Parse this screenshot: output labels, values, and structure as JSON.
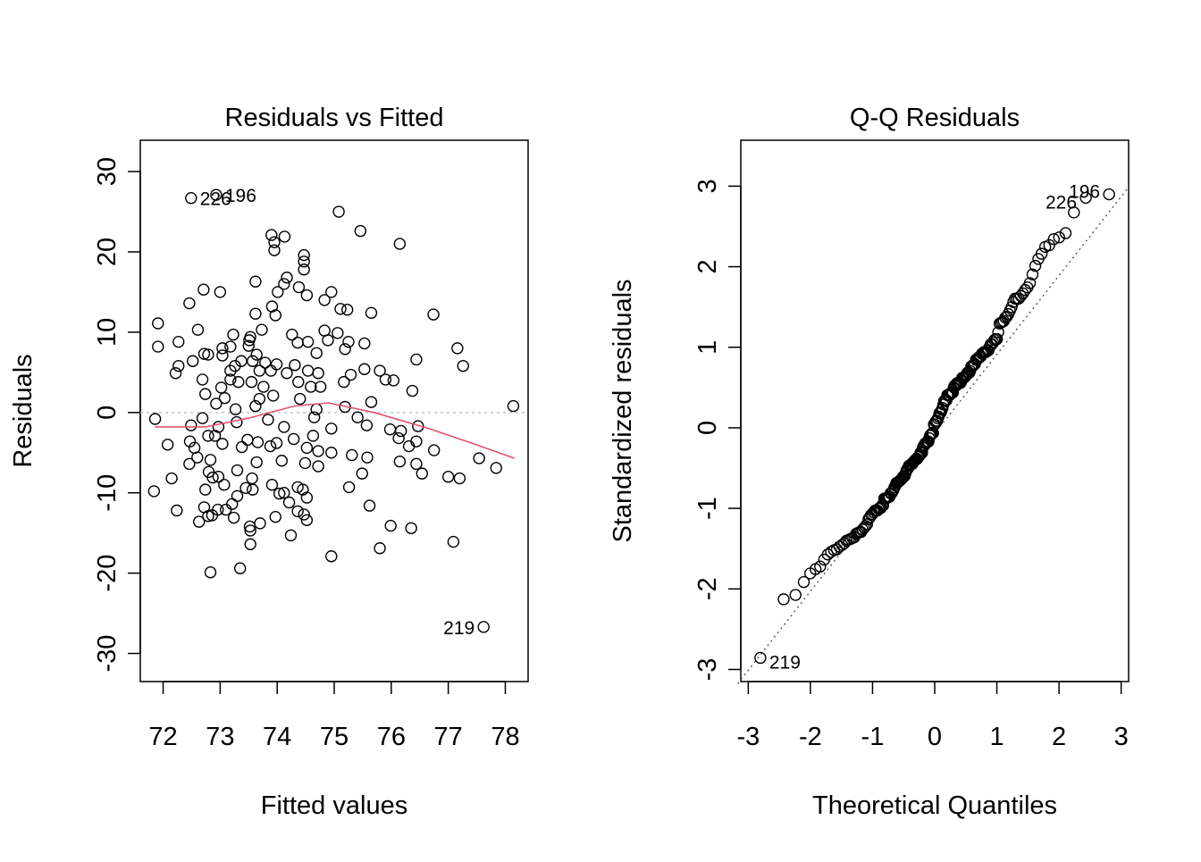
{
  "chart_data": [
    {
      "type": "scatter",
      "title": "Residuals vs Fitted",
      "xlabel": "Fitted values",
      "ylabel": "Residuals",
      "xlim": [
        71.6,
        78.4
      ],
      "ylim": [
        -33.5,
        33.9
      ],
      "xticks": [
        "72",
        "73",
        "74",
        "75",
        "76",
        "77",
        "78"
      ],
      "yticks": [
        "-30",
        "-20",
        "-10",
        "0",
        "10",
        "20",
        "30"
      ],
      "reference_line": {
        "y": 0,
        "color": "#BEBEBE",
        "style": "dotted"
      },
      "smoother_color": "#DF536B",
      "smoother": [
        [
          71.86,
          -1.8
        ],
        [
          72.74,
          -1.8
        ],
        [
          73.5,
          -0.7
        ],
        [
          74.3,
          0.8
        ],
        [
          74.9,
          1.2
        ],
        [
          75.7,
          0.0
        ],
        [
          76.66,
          -2.0
        ],
        [
          77.45,
          -3.9
        ],
        [
          78.16,
          -5.7
        ]
      ],
      "labels": [
        {
          "text": "226",
          "point": [
            72.49,
            26.7
          ],
          "side": "right"
        },
        {
          "text": "196",
          "point": [
            72.93,
            27.1
          ],
          "side": "right"
        },
        {
          "text": "219",
          "point": [
            77.62,
            -26.7
          ],
          "side": "left"
        }
      ],
      "points": [
        [
          72.49,
          26.7
        ],
        [
          72.93,
          27.1
        ],
        [
          75.08,
          25
        ],
        [
          75.46,
          22.6
        ],
        [
          76.15,
          21
        ],
        [
          73.9,
          22.1
        ],
        [
          74.13,
          21.9
        ],
        [
          73.95,
          21.2
        ],
        [
          73.95,
          20.2
        ],
        [
          74.47,
          19.6
        ],
        [
          74.47,
          18.8
        ],
        [
          74.47,
          17.8
        ],
        [
          73.62,
          16.3
        ],
        [
          74.17,
          16.8
        ],
        [
          74.12,
          16
        ],
        [
          74.38,
          15.6
        ],
        [
          74.01,
          15
        ],
        [
          72.71,
          15.3
        ],
        [
          73,
          15
        ],
        [
          74.52,
          14.6
        ],
        [
          74.95,
          15
        ],
        [
          74.83,
          14
        ],
        [
          72.46,
          13.6
        ],
        [
          73.91,
          13.2
        ],
        [
          75.11,
          12.9
        ],
        [
          75.23,
          12.8
        ],
        [
          73.97,
          12.1
        ],
        [
          73.62,
          12.3
        ],
        [
          75.65,
          12.4
        ],
        [
          76.74,
          12.2
        ],
        [
          71.91,
          11.1
        ],
        [
          72.61,
          10.3
        ],
        [
          73.73,
          10.3
        ],
        [
          74.83,
          10.2
        ],
        [
          75.06,
          9.9
        ],
        [
          73.23,
          9.7
        ],
        [
          73.53,
          9.4
        ],
        [
          74.26,
          9.7
        ],
        [
          72.27,
          8.8
        ],
        [
          73.51,
          9
        ],
        [
          74.54,
          8.8
        ],
        [
          74.89,
          9
        ],
        [
          75.25,
          8.8
        ],
        [
          75.53,
          8.6
        ],
        [
          73.5,
          8.3
        ],
        [
          74.36,
          8.7
        ],
        [
          73.04,
          8
        ],
        [
          73.18,
          8.2
        ],
        [
          77.16,
          8
        ],
        [
          71.91,
          8.2
        ],
        [
          72.72,
          7.3
        ],
        [
          72.79,
          7.2
        ],
        [
          73.04,
          7.1
        ],
        [
          73.64,
          7.2
        ],
        [
          74.69,
          7.4
        ],
        [
          75.19,
          7.9
        ],
        [
          72.52,
          6.4
        ],
        [
          73.37,
          6.4
        ],
        [
          73.57,
          6.4
        ],
        [
          73.79,
          6.2
        ],
        [
          73.99,
          6
        ],
        [
          74.31,
          5.9
        ],
        [
          76.44,
          6.6
        ],
        [
          77.26,
          5.8
        ],
        [
          72.27,
          5.8
        ],
        [
          72.22,
          4.9
        ],
        [
          73.18,
          5.2
        ],
        [
          73.26,
          5.8
        ],
        [
          73.69,
          5.2
        ],
        [
          73.89,
          5.2
        ],
        [
          74.17,
          4.9
        ],
        [
          74.54,
          5.2
        ],
        [
          74.72,
          4.9
        ],
        [
          75.29,
          4.7
        ],
        [
          75.53,
          5.4
        ],
        [
          75.8,
          5.2
        ],
        [
          75.9,
          4.1
        ],
        [
          76.04,
          4
        ],
        [
          73.18,
          4.1
        ],
        [
          73.32,
          3.8
        ],
        [
          73.55,
          3.8
        ],
        [
          73.76,
          3.2
        ],
        [
          72.69,
          4.1
        ],
        [
          74.37,
          3.8
        ],
        [
          74.59,
          3.2
        ],
        [
          74.76,
          3.2
        ],
        [
          75.17,
          3.8
        ],
        [
          76.37,
          2.7
        ],
        [
          73.02,
          3.1
        ],
        [
          72.74,
          2.3
        ],
        [
          73.08,
          1.8
        ],
        [
          72.93,
          1.1
        ],
        [
          73.69,
          1.7
        ],
        [
          73.93,
          2.1
        ],
        [
          74.4,
          1.7
        ],
        [
          73.27,
          0.4
        ],
        [
          73.62,
          0.8
        ],
        [
          74.69,
          0.4
        ],
        [
          75.19,
          0.7
        ],
        [
          75.65,
          1.3
        ],
        [
          78.14,
          0.8
        ],
        [
          71.86,
          -0.8
        ],
        [
          72.69,
          -0.7
        ],
        [
          72.49,
          -1.6
        ],
        [
          73.29,
          -1.2
        ],
        [
          73.84,
          -0.9
        ],
        [
          74.12,
          -1.8
        ],
        [
          74.65,
          -0.6
        ],
        [
          75.41,
          -0.6
        ],
        [
          75.57,
          -1.6
        ],
        [
          75.98,
          -2.1
        ],
        [
          76.17,
          -2.3
        ],
        [
          76.47,
          -1.7
        ],
        [
          72.97,
          -1.8
        ],
        [
          72.47,
          -3.6
        ],
        [
          72.08,
          -4
        ],
        [
          72.79,
          -2.9
        ],
        [
          72.91,
          -2.9
        ],
        [
          73.48,
          -3.4
        ],
        [
          73.66,
          -3.7
        ],
        [
          73.99,
          -3.8
        ],
        [
          74.29,
          -3.3
        ],
        [
          74.63,
          -2.9
        ],
        [
          74.95,
          -2
        ],
        [
          76.13,
          -3.2
        ],
        [
          76.44,
          -3.6
        ],
        [
          72.6,
          -5.6
        ],
        [
          72.55,
          -4.4
        ],
        [
          73.04,
          -3.9
        ],
        [
          73.38,
          -4.3
        ],
        [
          73.88,
          -4.2
        ],
        [
          74.52,
          -4.4
        ],
        [
          74.72,
          -4.8
        ],
        [
          74.95,
          -5
        ],
        [
          75.31,
          -5.3
        ],
        [
          75.58,
          -5.6
        ],
        [
          76.75,
          -4.7
        ],
        [
          76.31,
          -4.2
        ],
        [
          72.46,
          -6.4
        ],
        [
          72.83,
          -5.9
        ],
        [
          73.64,
          -6.2
        ],
        [
          74.08,
          -6
        ],
        [
          74.49,
          -6.3
        ],
        [
          74.72,
          -6.7
        ],
        [
          76.15,
          -6.1
        ],
        [
          76.44,
          -6.4
        ],
        [
          77.54,
          -5.7
        ],
        [
          77.84,
          -6.9
        ],
        [
          72.8,
          -7.4
        ],
        [
          73.3,
          -7.2
        ],
        [
          75.49,
          -7.6
        ],
        [
          76.54,
          -7.6
        ],
        [
          77,
          -8
        ],
        [
          77.2,
          -8.2
        ],
        [
          72.15,
          -8.2
        ],
        [
          72.87,
          -8.1
        ],
        [
          72.97,
          -8
        ],
        [
          73.56,
          -8.2
        ],
        [
          73.07,
          -9
        ],
        [
          73.91,
          -9
        ],
        [
          72.74,
          -9.6
        ],
        [
          73.45,
          -9.4
        ],
        [
          73.57,
          -9.6
        ],
        [
          74.36,
          -9.3
        ],
        [
          74.45,
          -9.6
        ],
        [
          75.26,
          -9.3
        ],
        [
          71.84,
          -9.8
        ],
        [
          74.04,
          -10.1
        ],
        [
          74.12,
          -10
        ],
        [
          74.52,
          -10.6
        ],
        [
          73.3,
          -10.4
        ],
        [
          73.21,
          -11.4
        ],
        [
          74.21,
          -11.2
        ],
        [
          75.62,
          -11.6
        ],
        [
          72.24,
          -12.2
        ],
        [
          72.72,
          -11.8
        ],
        [
          72.96,
          -12.1
        ],
        [
          72.79,
          -12.9
        ],
        [
          72.86,
          -12.8
        ],
        [
          73.1,
          -12.1
        ],
        [
          74.36,
          -12.3
        ],
        [
          74.47,
          -12.7
        ],
        [
          72.63,
          -13.6
        ],
        [
          73.24,
          -13.1
        ],
        [
          73.97,
          -13
        ],
        [
          74.52,
          -13.4
        ],
        [
          73.52,
          -14.2
        ],
        [
          73.7,
          -13.8
        ],
        [
          75.99,
          -14.1
        ],
        [
          76.35,
          -14.4
        ],
        [
          73.53,
          -14.7
        ],
        [
          74.24,
          -15.3
        ],
        [
          73.53,
          -16.4
        ],
        [
          77.09,
          -16.1
        ],
        [
          75.8,
          -16.9
        ],
        [
          74.95,
          -17.9
        ],
        [
          72.83,
          -19.9
        ],
        [
          73.35,
          -19.4
        ],
        [
          77.62,
          -26.7
        ]
      ]
    },
    {
      "type": "scatter",
      "title": "Q-Q Residuals",
      "xlabel": "Theoretical Quantiles",
      "ylabel": "Standardized residuals",
      "xlim": [
        -3.12,
        3.12
      ],
      "ylim": [
        -3.15,
        3.57
      ],
      "xticks": [
        "-3",
        "-2",
        "-1",
        "0",
        "1",
        "2",
        "3"
      ],
      "yticks": [
        "-3",
        "-2",
        "-1",
        "0",
        "1",
        "2",
        "3"
      ],
      "residual_scale": 9.35,
      "qq_line": {
        "intercept": -0.07,
        "slope": 0.98,
        "color": "#555555",
        "style": "dotted"
      },
      "labels": [
        {
          "text": "226",
          "rank": "second-highest",
          "side": "left"
        },
        {
          "text": "196",
          "rank": "highest",
          "side": "left"
        },
        {
          "text": "219",
          "rank": "lowest",
          "side": "right"
        }
      ]
    }
  ]
}
